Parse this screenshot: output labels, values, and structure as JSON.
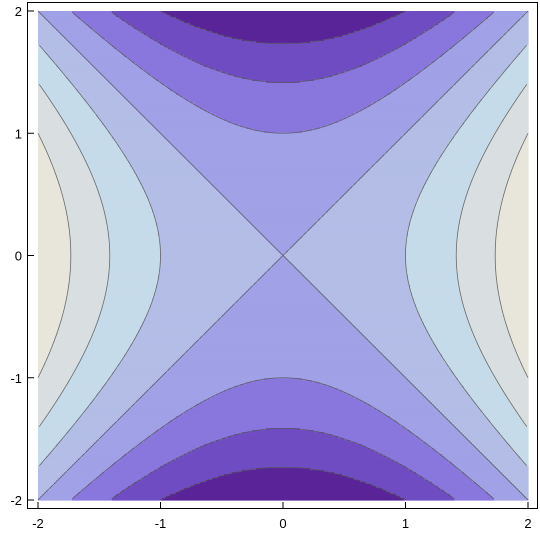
{
  "chart_data": {
    "type": "contour",
    "title": "",
    "xlabel": "",
    "ylabel": "",
    "function": "x^2 - y^2",
    "xlim": [
      -2,
      2
    ],
    "ylim": [
      -2,
      2
    ],
    "x_ticks": [
      -2,
      -1,
      0,
      1,
      2
    ],
    "y_ticks": [
      -2,
      -1,
      0,
      1,
      2
    ],
    "x_tick_labels": [
      "-2",
      "-1",
      "0",
      "1",
      "2"
    ],
    "y_tick_labels": [
      "-2",
      "-1",
      "0",
      "1",
      "2"
    ],
    "contour_levels": [
      -3,
      -2,
      -1,
      0,
      1,
      2,
      3
    ],
    "band_colors": [
      "#5a2499",
      "#6f4cc1",
      "#8977dd",
      "#a0a1e6",
      "#b3bde6",
      "#c6dbe9",
      "#d9dfe0",
      "#e8e6da"
    ],
    "grid": false,
    "legend": "none"
  }
}
